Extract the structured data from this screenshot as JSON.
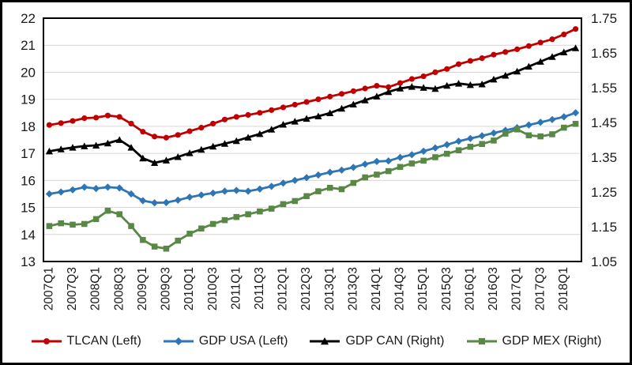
{
  "chart_data": {
    "type": "line",
    "title": "",
    "xlabel": "",
    "ylabel_left": "",
    "ylabel_right": "",
    "x_categories": [
      "2007Q1",
      "2007Q2",
      "2007Q3",
      "2007Q4",
      "2008Q1",
      "2008Q2",
      "2008Q3",
      "2008Q4",
      "2009Q1",
      "2009Q2",
      "2009Q3",
      "2009Q4",
      "2010Q1",
      "2010Q2",
      "2010Q3",
      "2010Q4",
      "2011Q1",
      "2011Q2",
      "2011Q3",
      "2011Q4",
      "2012Q1",
      "2012Q2",
      "2012Q3",
      "2012Q4",
      "2013Q1",
      "2013Q2",
      "2013Q3",
      "2013Q4",
      "2014Q1",
      "2014Q2",
      "2014Q3",
      "2014Q4",
      "2015Q1",
      "2015Q2",
      "2015Q3",
      "2015Q4",
      "2016Q1",
      "2016Q2",
      "2016Q3",
      "2016Q4",
      "2017Q1",
      "2017Q2",
      "2017Q3",
      "2017Q4",
      "2018Q1",
      "2018Q2"
    ],
    "x_tick_labels": [
      "2007Q1",
      "2007Q3",
      "2008Q1",
      "2008Q3",
      "2009Q1",
      "2009Q3",
      "2010Q1",
      "2010Q3",
      "2011Q1",
      "2011Q3",
      "2012Q1",
      "2012Q3",
      "2013Q1",
      "2013Q3",
      "2014Q1",
      "2014Q3",
      "2015Q1",
      "2015Q3",
      "2016Q1",
      "2016Q3",
      "2017Q1",
      "2017Q3",
      "2018Q1"
    ],
    "x_tick_every": 2,
    "left_axis": {
      "min": 13,
      "max": 22,
      "ticks": [
        22,
        21,
        20,
        19,
        18,
        17,
        16,
        15,
        14,
        13
      ]
    },
    "right_axis": {
      "min": 1.05,
      "max": 1.75,
      "ticks": [
        1.75,
        1.65,
        1.55,
        1.45,
        1.35,
        1.25,
        1.15,
        1.05
      ]
    },
    "grid": {
      "show": true,
      "color": "#D6D6D6"
    },
    "legend_position": "bottom",
    "series": [
      {
        "name": "TLCAN (Left)",
        "axis": "left",
        "color": "#C00000",
        "marker": "circle",
        "values": [
          18.05,
          18.12,
          18.2,
          18.3,
          18.32,
          18.4,
          18.35,
          18.1,
          17.8,
          17.62,
          17.58,
          17.68,
          17.82,
          17.95,
          18.1,
          18.25,
          18.35,
          18.42,
          18.5,
          18.6,
          18.7,
          18.8,
          18.9,
          19.0,
          19.1,
          19.2,
          19.3,
          19.4,
          19.5,
          19.45,
          19.6,
          19.75,
          19.85,
          20.0,
          20.12,
          20.3,
          20.42,
          20.52,
          20.65,
          20.75,
          20.85,
          20.97,
          21.1,
          21.22,
          21.4,
          21.6
        ]
      },
      {
        "name": "GDP USA (Left)",
        "axis": "left",
        "color": "#2E75B6",
        "marker": "diamond",
        "values": [
          15.5,
          15.57,
          15.65,
          15.75,
          15.7,
          15.75,
          15.72,
          15.5,
          15.25,
          15.17,
          15.18,
          15.27,
          15.38,
          15.46,
          15.53,
          15.6,
          15.63,
          15.6,
          15.68,
          15.78,
          15.9,
          16.0,
          16.1,
          16.2,
          16.3,
          16.38,
          16.48,
          16.6,
          16.7,
          16.72,
          16.85,
          16.95,
          17.08,
          17.2,
          17.32,
          17.45,
          17.55,
          17.65,
          17.75,
          17.85,
          17.95,
          18.05,
          18.15,
          18.25,
          18.35,
          18.5
        ]
      },
      {
        "name": "GDP CAN (Right)",
        "axis": "right",
        "color": "#000000",
        "marker": "triangle",
        "values": [
          1.367,
          1.373,
          1.378,
          1.382,
          1.384,
          1.39,
          1.4,
          1.378,
          1.347,
          1.334,
          1.341,
          1.351,
          1.362,
          1.372,
          1.381,
          1.389,
          1.397,
          1.407,
          1.417,
          1.43,
          1.444,
          1.453,
          1.461,
          1.468,
          1.477,
          1.49,
          1.502,
          1.514,
          1.525,
          1.538,
          1.548,
          1.553,
          1.55,
          1.547,
          1.556,
          1.562,
          1.558,
          1.56,
          1.574,
          1.585,
          1.597,
          1.611,
          1.625,
          1.639,
          1.652,
          1.664
        ]
      },
      {
        "name": "GDP MEX (Right)",
        "axis": "right",
        "color": "#598745",
        "marker": "square",
        "values": [
          1.152,
          1.16,
          1.156,
          1.158,
          1.172,
          1.196,
          1.186,
          1.152,
          1.112,
          1.093,
          1.087,
          1.11,
          1.13,
          1.145,
          1.158,
          1.169,
          1.178,
          1.186,
          1.194,
          1.202,
          1.215,
          1.224,
          1.238,
          1.252,
          1.262,
          1.258,
          1.276,
          1.292,
          1.3,
          1.31,
          1.322,
          1.332,
          1.34,
          1.35,
          1.36,
          1.37,
          1.38,
          1.388,
          1.398,
          1.418,
          1.43,
          1.413,
          1.41,
          1.416,
          1.435,
          1.446
        ]
      }
    ],
    "tick_label_color": "#1a1a1a",
    "axis_line_color": "#000000"
  }
}
